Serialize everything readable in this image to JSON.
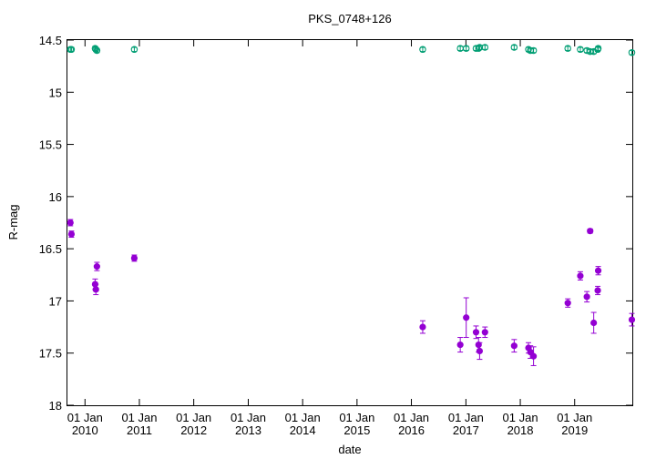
{
  "chart_data": {
    "type": "scatter",
    "title": "PKS_0748+126",
    "xlabel": "date",
    "ylabel": "R-mag",
    "y_axis_inverted": true,
    "ylim": [
      14.5,
      18
    ],
    "xlim": [
      "2009-09-05",
      "2020-01-23"
    ],
    "y_ticks": [
      "14.5",
      "15",
      "15.5",
      "16",
      "16.5",
      "17",
      "17.5",
      "18"
    ],
    "x_ticks": [
      {
        "date": "2010-01-01",
        "line1": "01 Jan",
        "line2": "2010"
      },
      {
        "date": "2011-01-01",
        "line1": "01 Jan",
        "line2": "2011"
      },
      {
        "date": "2012-01-01",
        "line1": "01 Jan",
        "line2": "2012"
      },
      {
        "date": "2013-01-01",
        "line1": "01 Jan",
        "line2": "2013"
      },
      {
        "date": "2014-01-01",
        "line1": "01 Jan",
        "line2": "2014"
      },
      {
        "date": "2015-01-01",
        "line1": "01 Jan",
        "line2": "2015"
      },
      {
        "date": "2016-01-01",
        "line1": "01 Jan",
        "line2": "2016"
      },
      {
        "date": "2017-01-01",
        "line1": "01 Jan",
        "line2": "2017"
      },
      {
        "date": "2018-01-01",
        "line1": "01 Jan",
        "line2": "2018"
      },
      {
        "date": "2019-01-01",
        "line1": "01 Jan",
        "line2": "2019"
      }
    ],
    "grid": false,
    "legend": "none",
    "series": [
      {
        "color": "#9400d3",
        "marker": "filled-circle",
        "points": [
          {
            "x": "2009-09-25",
            "y": 16.25,
            "err": 0.03
          },
          {
            "x": "2009-10-02",
            "y": 16.36,
            "err": 0.03
          },
          {
            "x": "2010-03-10",
            "y": 16.84,
            "err": 0.05
          },
          {
            "x": "2010-03-15",
            "y": 16.89,
            "err": 0.05
          },
          {
            "x": "2010-03-22",
            "y": 16.67,
            "err": 0.04
          },
          {
            "x": "2010-11-28",
            "y": 16.59,
            "err": 0.03
          },
          {
            "x": "2016-03-17",
            "y": 17.25,
            "err": 0.06
          },
          {
            "x": "2016-11-24",
            "y": 17.42,
            "err": 0.07
          },
          {
            "x": "2017-01-03",
            "y": 17.16,
            "err": 0.19
          },
          {
            "x": "2017-03-10",
            "y": 17.3,
            "err": 0.06
          },
          {
            "x": "2017-03-27",
            "y": 17.42,
            "err": 0.07
          },
          {
            "x": "2017-04-03",
            "y": 17.48,
            "err": 0.08
          },
          {
            "x": "2017-05-09",
            "y": 17.3,
            "err": 0.05
          },
          {
            "x": "2017-11-21",
            "y": 17.43,
            "err": 0.06
          },
          {
            "x": "2018-02-25",
            "y": 17.45,
            "err": 0.05
          },
          {
            "x": "2018-03-10",
            "y": 17.49,
            "err": 0.06
          },
          {
            "x": "2018-03-31",
            "y": 17.53,
            "err": 0.09
          },
          {
            "x": "2018-11-16",
            "y": 17.02,
            "err": 0.04
          },
          {
            "x": "2019-02-08",
            "y": 16.76,
            "err": 0.04
          },
          {
            "x": "2019-03-24",
            "y": 16.96,
            "err": 0.05
          },
          {
            "x": "2019-04-15",
            "y": 16.33,
            "err": 0.02
          },
          {
            "x": "2019-05-09",
            "y": 17.21,
            "err": 0.1
          },
          {
            "x": "2019-06-05",
            "y": 16.9,
            "err": 0.04
          },
          {
            "x": "2019-06-08",
            "y": 16.71,
            "err": 0.04
          },
          {
            "x": "2020-01-20",
            "y": 17.18,
            "err": 0.06
          }
        ]
      },
      {
        "color": "#009e73",
        "marker": "open-circle",
        "points": [
          {
            "x": "2009-09-25",
            "y": 14.59,
            "err": 0.02
          },
          {
            "x": "2009-10-02",
            "y": 14.59,
            "err": 0.02
          },
          {
            "x": "2010-03-10",
            "y": 14.58,
            "err": 0.02
          },
          {
            "x": "2010-03-15",
            "y": 14.59,
            "err": 0.02
          },
          {
            "x": "2010-03-22",
            "y": 14.6,
            "err": 0.02
          },
          {
            "x": "2010-11-28",
            "y": 14.59,
            "err": 0.02
          },
          {
            "x": "2016-03-17",
            "y": 14.59,
            "err": 0.02
          },
          {
            "x": "2016-11-24",
            "y": 14.58,
            "err": 0.02
          },
          {
            "x": "2017-01-03",
            "y": 14.58,
            "err": 0.02
          },
          {
            "x": "2017-03-10",
            "y": 14.58,
            "err": 0.02
          },
          {
            "x": "2017-03-27",
            "y": 14.58,
            "err": 0.02
          },
          {
            "x": "2017-04-03",
            "y": 14.57,
            "err": 0.02
          },
          {
            "x": "2017-05-09",
            "y": 14.57,
            "err": 0.02
          },
          {
            "x": "2017-11-21",
            "y": 14.57,
            "err": 0.02
          },
          {
            "x": "2018-02-25",
            "y": 14.59,
            "err": 0.02
          },
          {
            "x": "2018-03-10",
            "y": 14.6,
            "err": 0.02
          },
          {
            "x": "2018-03-31",
            "y": 14.6,
            "err": 0.02
          },
          {
            "x": "2018-11-16",
            "y": 14.58,
            "err": 0.02
          },
          {
            "x": "2019-02-08",
            "y": 14.59,
            "err": 0.02
          },
          {
            "x": "2019-03-24",
            "y": 14.6,
            "err": 0.02
          },
          {
            "x": "2019-04-15",
            "y": 14.61,
            "err": 0.02
          },
          {
            "x": "2019-05-09",
            "y": 14.61,
            "err": 0.02
          },
          {
            "x": "2019-06-05",
            "y": 14.59,
            "err": 0.02
          },
          {
            "x": "2019-06-08",
            "y": 14.58,
            "err": 0.02
          },
          {
            "x": "2020-01-20",
            "y": 14.62,
            "err": 0.02
          }
        ]
      }
    ]
  }
}
